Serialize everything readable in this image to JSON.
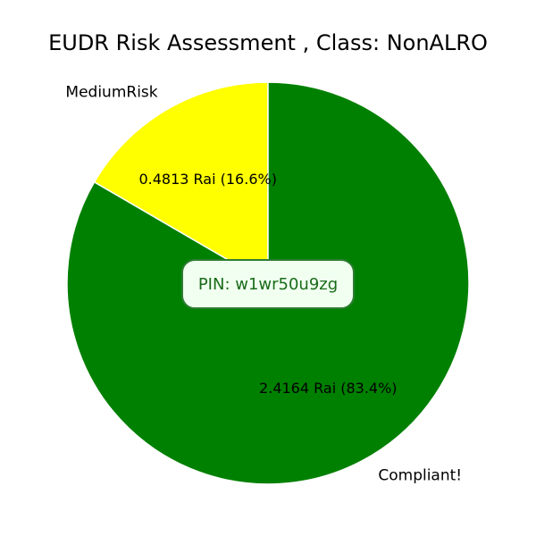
{
  "chart_data": {
    "type": "pie",
    "title": "EUDR Risk Assessment , Class: NonALRO",
    "slices": [
      {
        "label": "MediumRisk",
        "value": 0.4813,
        "display": "0.4813 Rai (16.6%)",
        "color": "#ffff00"
      },
      {
        "label": "Compliant!",
        "value": 2.4164,
        "display": "2.4164 Rai (83.4%)",
        "color": "#008000"
      }
    ],
    "start_angle": "12 o'clock",
    "direction": "counterclockwise"
  },
  "annotation": {
    "text": "PIN: w1wr50u9zg",
    "border_color": "#2e7d32",
    "background_color": "#f0fff0"
  }
}
